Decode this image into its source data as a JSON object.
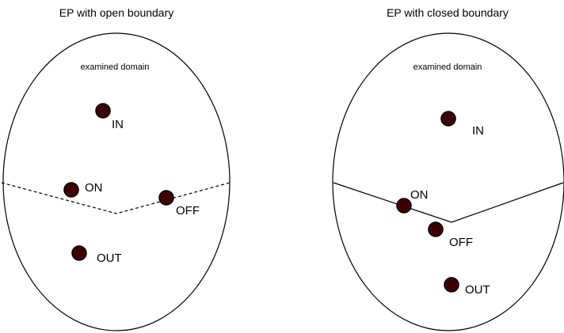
{
  "panels": [
    {
      "title": "EP with open boundary",
      "domain_label": "examined domain",
      "boundary_style": "dashed",
      "points": [
        {
          "label": "IN"
        },
        {
          "label": "ON"
        },
        {
          "label": "OFF"
        },
        {
          "label": "OUT"
        }
      ]
    },
    {
      "title": "EP with closed boundary",
      "domain_label": "examined domain",
      "boundary_style": "solid",
      "points": [
        {
          "label": "IN"
        },
        {
          "label": "ON"
        },
        {
          "label": "OFF"
        },
        {
          "label": "OUT"
        }
      ]
    }
  ],
  "colors": {
    "point_fill": "#3d0000",
    "stroke": "#000000"
  }
}
